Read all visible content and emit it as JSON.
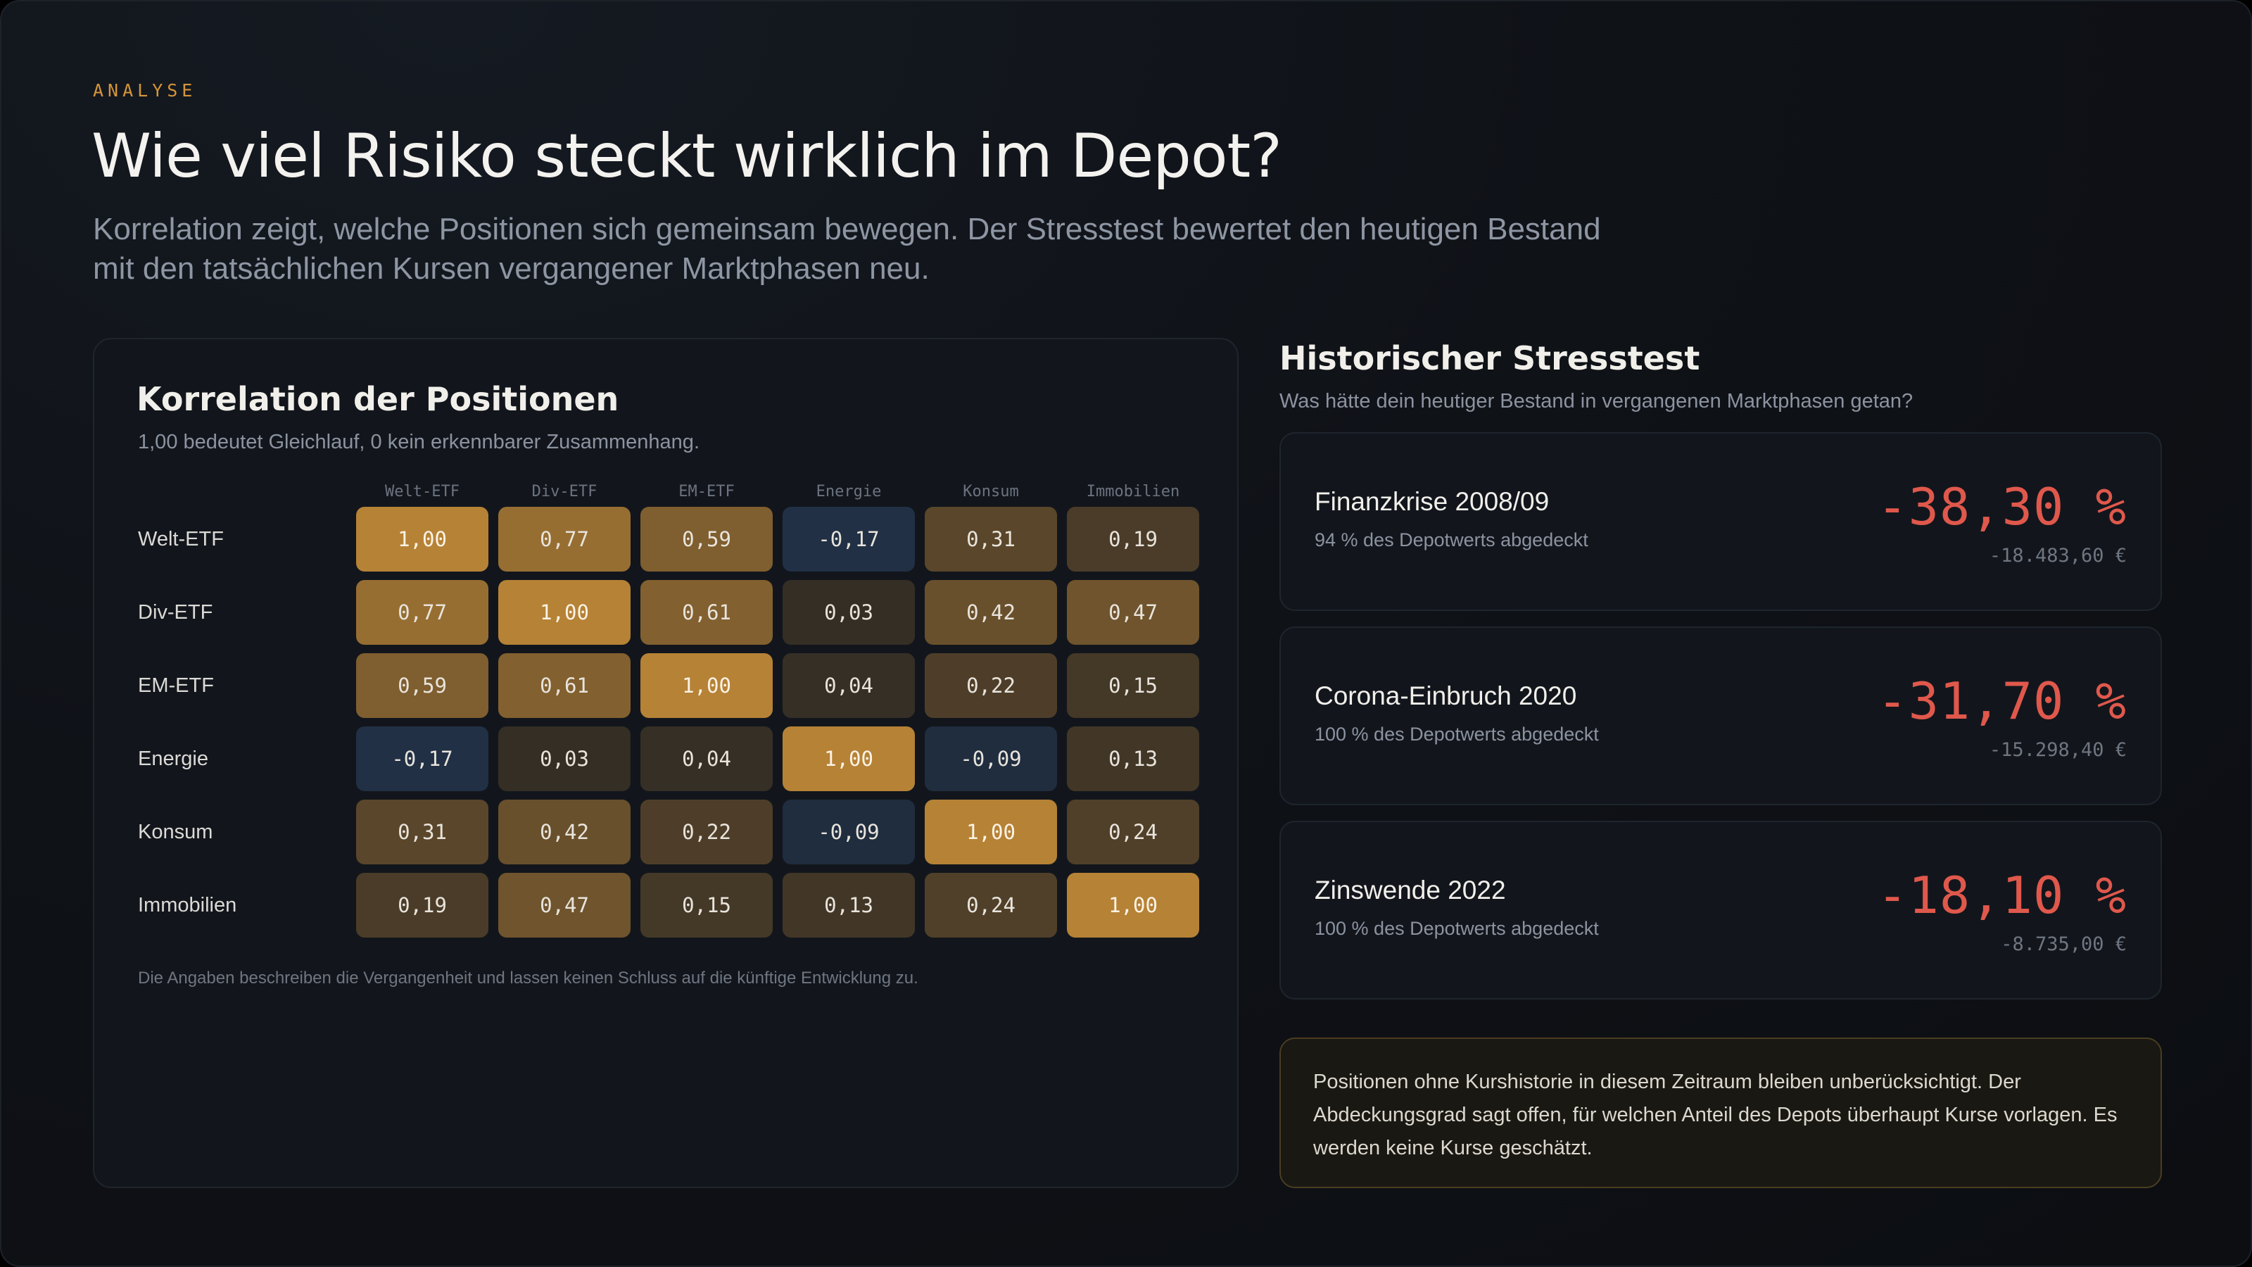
{
  "header": {
    "eyebrow": "ANALYSE",
    "title": "Wie viel Risiko steckt wirklich im Depot?",
    "lede": "Korrelation zeigt, welche Positionen sich gemeinsam bewegen. Der Stresstest bewertet den heutigen Bestand mit den tatsächlichen Kursen vergangener Marktphasen neu."
  },
  "correlation": {
    "title": "Korrelation der Positionen",
    "subtitle": "1,00 bedeutet Gleichlauf, 0 kein erkennbarer Zusammenhang.",
    "columns": [
      "Welt-ETF",
      "Div-ETF",
      "EM-ETF",
      "Energie",
      "Konsum",
      "Immobilien"
    ],
    "rows": [
      {
        "label": "Welt-ETF",
        "values": [
          1.0,
          0.77,
          0.59,
          -0.17,
          0.31,
          0.19
        ]
      },
      {
        "label": "Div-ETF",
        "values": [
          0.77,
          1.0,
          0.61,
          0.03,
          0.42,
          0.47
        ]
      },
      {
        "label": "EM-ETF",
        "values": [
          0.59,
          0.61,
          1.0,
          0.04,
          0.22,
          0.15
        ]
      },
      {
        "label": "Energie",
        "values": [
          -0.17,
          0.03,
          0.04,
          1.0,
          -0.09,
          0.13
        ]
      },
      {
        "label": "Konsum",
        "values": [
          0.31,
          0.42,
          0.22,
          -0.09,
          1.0,
          0.24
        ]
      },
      {
        "label": "Immobilien",
        "values": [
          0.19,
          0.47,
          0.15,
          0.13,
          0.24,
          1.0
        ]
      }
    ],
    "colors": {
      "positive": "#d4953a",
      "negative": "#2a4a75",
      "neutral": "#1a1d22"
    },
    "footnote": "Die Angaben beschreiben die Vergangenheit und lassen keinen Schluss auf die künftige Entwicklung zu."
  },
  "stresstest": {
    "title": "Historischer Stresstest",
    "subtitle": "Was hätte dein heutiger Bestand in vergangenen Marktphasen getan?",
    "scenarios": [
      {
        "name": "Finanzkrise 2008/09",
        "coverage": "94 % des Depotwerts abgedeckt",
        "change": "-38,30 %",
        "amount": "-18.483,60 €"
      },
      {
        "name": "Corona-Einbruch 2020",
        "coverage": "100 % des Depotwerts abgedeckt",
        "change": "-31,70 %",
        "amount": "-15.298,40 €"
      },
      {
        "name": "Zinswende 2022",
        "coverage": "100 % des Depotwerts abgedeckt",
        "change": "-18,10 %",
        "amount": "-8.735,00 €"
      }
    ],
    "note": "Positionen ohne Kurshistorie in diesem Zeitraum bleiben unberücksichtigt. Der Abdeckungsgrad sagt offen, für welchen Anteil des Depots überhaupt Kurse vorlagen. Es werden keine Kurse geschätzt.",
    "loss_color": "#e0584c"
  }
}
